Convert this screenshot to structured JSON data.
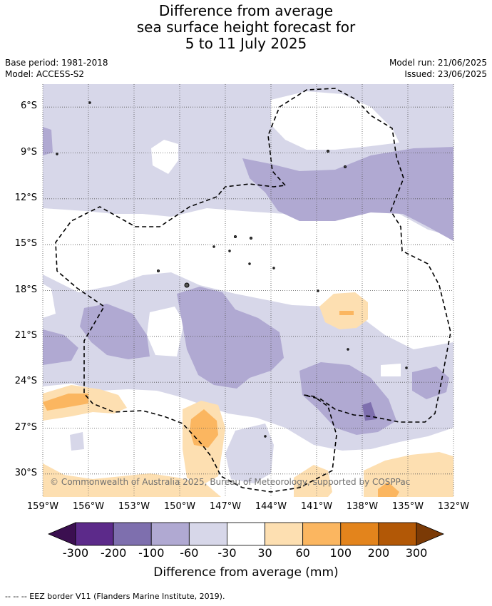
{
  "title": {
    "line1": "Difference from average",
    "line2": "sea surface height forecast for",
    "line3": "5 to 11 July 2025"
  },
  "meta": {
    "base_period": "Base period: 1981-2018",
    "model": "Model: ACCESS-S2",
    "model_run": "Model run: 21/06/2025",
    "issued": "Issued: 23/06/2025"
  },
  "map": {
    "lon_range": [
      -159,
      -132
    ],
    "lat_range": [
      -31.5,
      -4.5
    ],
    "lat_ticks": [
      "6°S",
      "9°S",
      "12°S",
      "15°S",
      "18°S",
      "21°S",
      "24°S",
      "27°S",
      "30°S"
    ],
    "lon_ticks": [
      "159°W",
      "156°W",
      "153°W",
      "150°W",
      "147°W",
      "144°W",
      "141°W",
      "138°W",
      "135°W",
      "132°W"
    ],
    "copyright": "© Commonwealth of Australia 2025, Bureau of Meteorology, supported by COSPPac"
  },
  "colorbar": {
    "labels": [
      "-300",
      "-200",
      "-100",
      "-60",
      "-30",
      "30",
      "60",
      "100",
      "200",
      "300"
    ],
    "colors": [
      "#3b0f50",
      "#5c2a8a",
      "#7e6fae",
      "#b0a9d2",
      "#d7d7e9",
      "#ffffff",
      "#fddfb1",
      "#fbb660",
      "#e3841c",
      "#b25806",
      "#7b3a06"
    ],
    "title": "Difference from average (mm)"
  },
  "legend": {
    "eez": "-- -- -- EEZ border V11 (Flanders Marine Institute, 2019)."
  }
}
